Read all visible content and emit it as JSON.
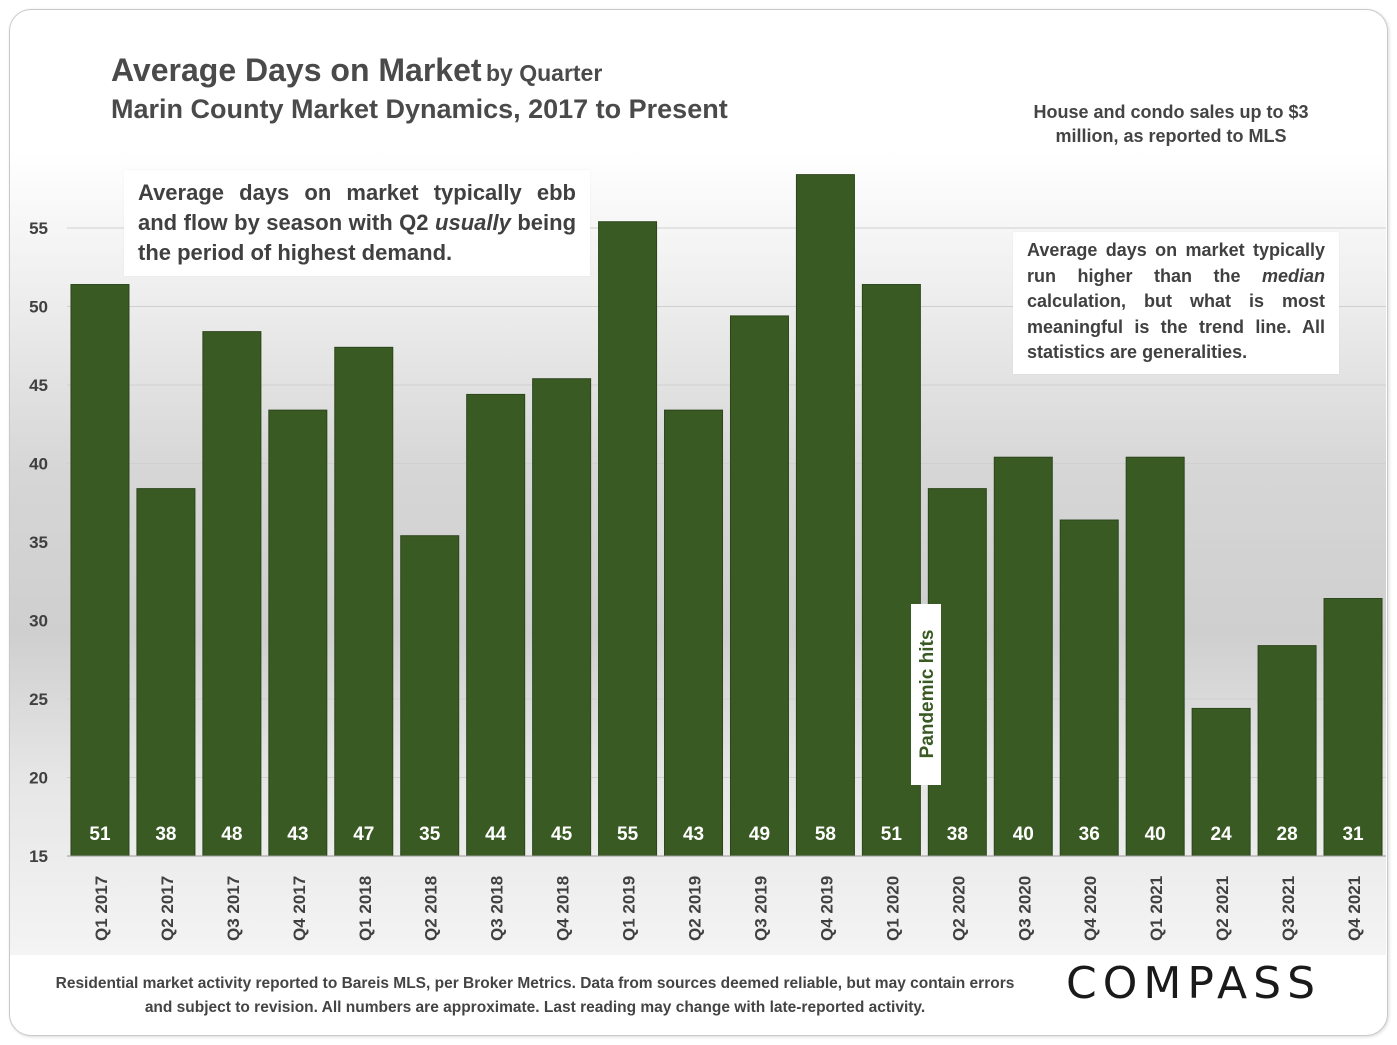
{
  "header": {
    "title_main": "Average Days on Market",
    "title_suffix": "by Quarter",
    "subtitle": "Marin County Market Dynamics, 2017 to Present",
    "scope_note": "House and condo sales up to $3 million, as reported to MLS"
  },
  "annotations": {
    "left_pre": "Average days on market typically ebb and flow by season with Q2 ",
    "left_em": "usually",
    "left_post": " being the period of highest demand.",
    "right_pre": "Average days on market typically run higher than the ",
    "right_em": "median",
    "right_post": " calculation, but what is most meaningful is the trend line. All statistics are generalities.",
    "pandemic": "Pandemic hits"
  },
  "footer": {
    "note": "Residential market activity reported to Bareis MLS, per Broker Metrics. Data from sources deemed reliable, but may contain errors and subject to revision. All numbers are approximate. Last reading may change with late-reported activity.",
    "logo": "COMPASS"
  },
  "colors": {
    "bar": "#3a5a24",
    "bar_label": "#ffffff",
    "axis_text": "#404040"
  },
  "chart_data": {
    "type": "bar",
    "title": "Average Days on Market by Quarter",
    "categories": [
      "Q1 2017",
      "Q2 2017",
      "Q3 2017",
      "Q4 2017",
      "Q1 2018",
      "Q2 2018",
      "Q3 2018",
      "Q4 2018",
      "Q1 2019",
      "Q2 2019",
      "Q3 2019",
      "Q4 2019",
      "Q1 2020",
      "Q2 2020",
      "Q3 2020",
      "Q4 2020",
      "Q1 2021",
      "Q2 2021",
      "Q3 2021",
      "Q4 2021"
    ],
    "values": [
      51.4,
      38.4,
      48.4,
      43.4,
      47.4,
      35.4,
      44.4,
      45.4,
      55.4,
      43.4,
      49.4,
      58.4,
      51.4,
      38.4,
      40.4,
      36.4,
      40.4,
      24.4,
      28.4,
      31.4
    ],
    "labels": [
      "51",
      "38",
      "48",
      "43",
      "47",
      "35",
      "44",
      "45",
      "55",
      "43",
      "49",
      "58",
      "51",
      "38",
      "40",
      "36",
      "40",
      "24",
      "28",
      "31"
    ],
    "yticks": [
      15,
      20,
      25,
      30,
      35,
      40,
      45,
      50,
      55
    ],
    "ylim": [
      15,
      59
    ],
    "grid": true
  }
}
